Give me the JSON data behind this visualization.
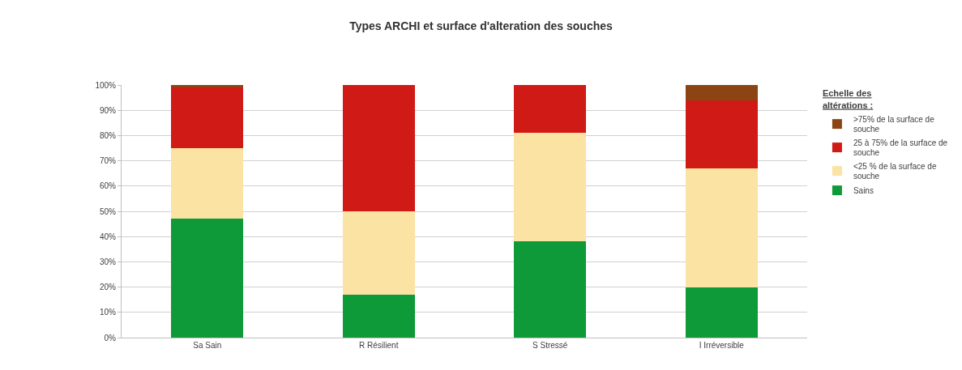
{
  "chart_data": {
    "type": "bar",
    "title": "Types ARCHI et surface d'alteration des souches",
    "categories": [
      "Sa Sain",
      "R Résilient",
      "S Stressé",
      "I Irréversible"
    ],
    "stacked": true,
    "legend_title": "Echelle des altérations :",
    "series": [
      {
        "name": "Sains",
        "color": "#0f9a3a",
        "values": [
          47,
          17,
          38,
          20
        ]
      },
      {
        "name": "<25 % de la surface de souche",
        "color": "#fbe3a4",
        "values": [
          28,
          33,
          43,
          47
        ]
      },
      {
        "name": "25 à 75% de la surface de souche",
        "color": "#d01a16",
        "values": [
          24,
          50,
          19,
          27
        ]
      },
      {
        "name": ">75% de la surface de souche",
        "color": "#8b4513",
        "values": [
          1,
          0,
          0,
          6
        ]
      }
    ],
    "ylim": [
      0,
      100
    ],
    "yticks": [
      {
        "value": 0,
        "label": "0%"
      },
      {
        "value": 10,
        "label": "10%"
      },
      {
        "value": 20,
        "label": "20%"
      },
      {
        "value": 30,
        "label": "30%"
      },
      {
        "value": 40,
        "label": "40%"
      },
      {
        "value": 50,
        "label": "50%"
      },
      {
        "value": 60,
        "label": "60%"
      },
      {
        "value": 70,
        "label": "70%"
      },
      {
        "value": 80,
        "label": "80%"
      },
      {
        "value": 90,
        "label": "90%"
      },
      {
        "value": 100,
        "label": "100%"
      }
    ],
    "grid": "y",
    "legend": "right"
  }
}
